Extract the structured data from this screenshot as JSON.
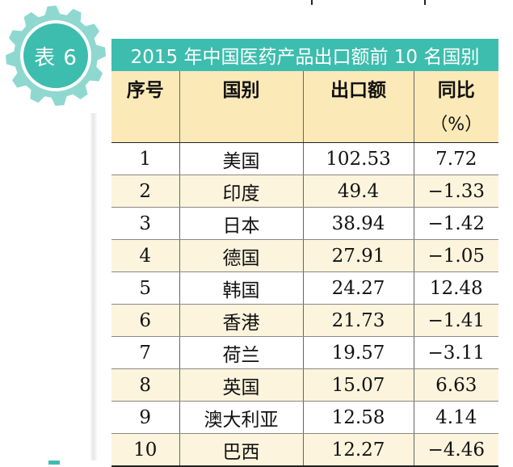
{
  "badge": {
    "label": "表 6"
  },
  "title": "2015 年中国医药产品出口额前 10 名国别",
  "table": {
    "headers": [
      {
        "label": "序号",
        "sub": ""
      },
      {
        "label": "国别",
        "sub": ""
      },
      {
        "label": "出口额",
        "sub": ""
      },
      {
        "label": "同比",
        "sub": "（%）"
      }
    ],
    "rows": [
      [
        "1",
        "美国",
        "102.53",
        "7.72"
      ],
      [
        "2",
        "印度",
        "49.4",
        "−1.33"
      ],
      [
        "3",
        "日本",
        "38.94",
        "−1.42"
      ],
      [
        "4",
        "德国",
        "27.91",
        "−1.05"
      ],
      [
        "5",
        "韩国",
        "24.27",
        "12.48"
      ],
      [
        "6",
        "香港",
        "21.73",
        "−1.41"
      ],
      [
        "7",
        "荷兰",
        "19.57",
        "−3.11"
      ],
      [
        "8",
        "英国",
        "15.07",
        "6.63"
      ],
      [
        "9",
        "澳大利亚",
        "12.58",
        "4.14"
      ],
      [
        "10",
        "巴西",
        "12.27",
        "−4.46"
      ]
    ]
  },
  "colors": {
    "accent": "#3dbdae",
    "header_bg": "#fbe9b7",
    "row_alt_bg": "#fdf4dd"
  }
}
